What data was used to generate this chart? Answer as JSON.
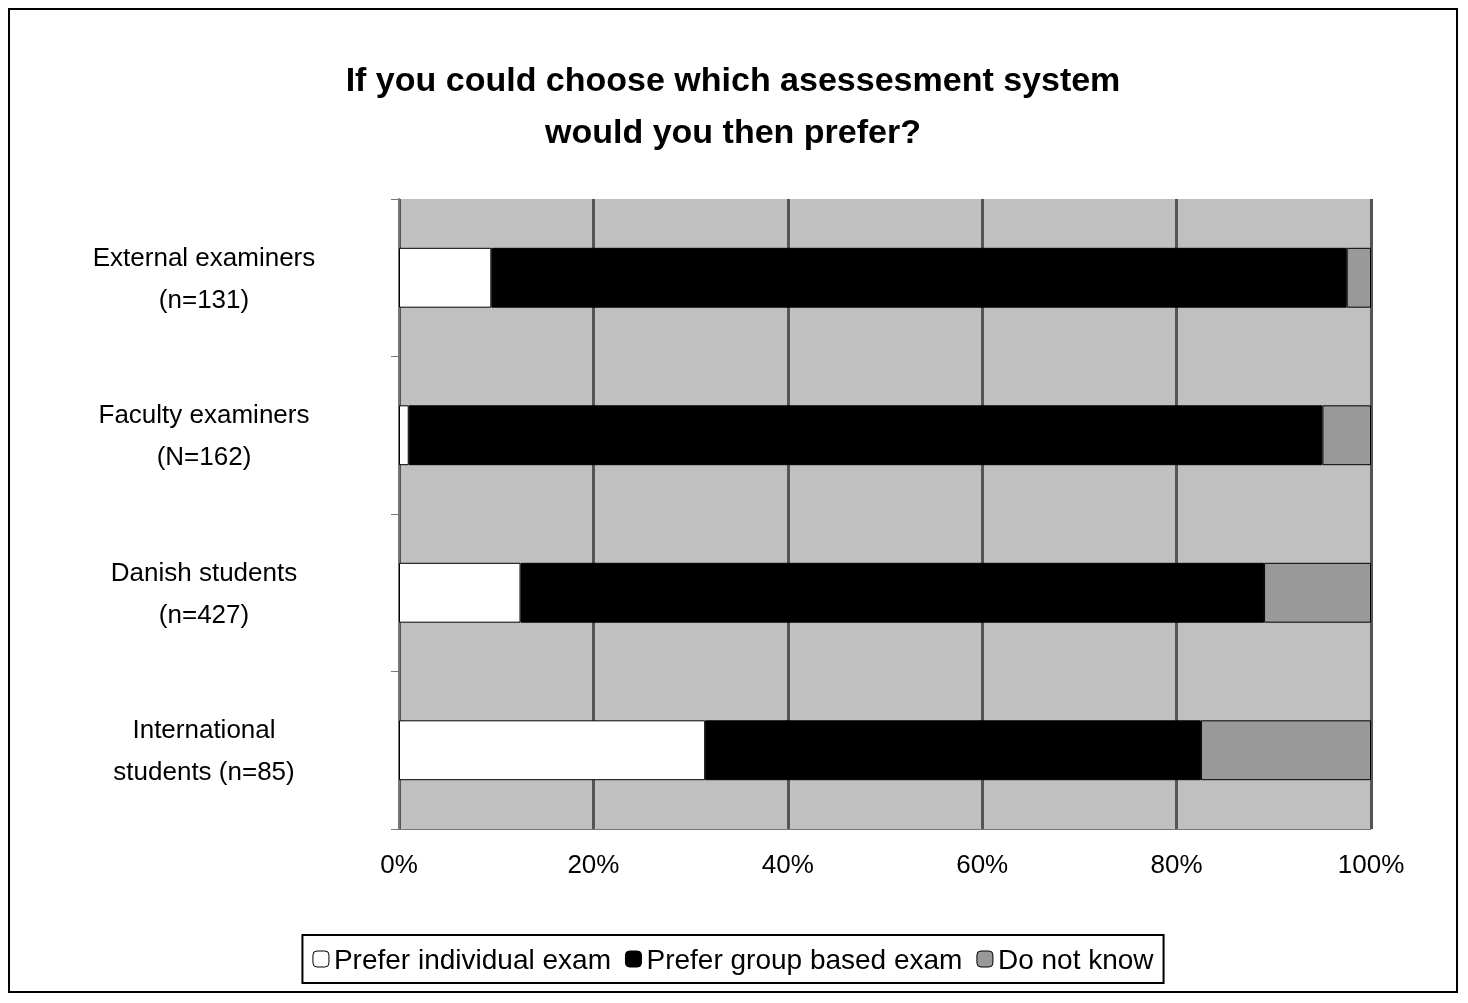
{
  "chart_data": {
    "type": "bar",
    "orientation": "horizontal",
    "stacked": true,
    "title": "If you could choose which asessesment system\nwould you then prefer?",
    "categories": [
      "External examiners\n(n=131)",
      "Faculty examiners\n(N=162)",
      "Danish students\n(n=427)",
      "International\nstudents (n=85)"
    ],
    "series": [
      {
        "name": "Prefer individual exam",
        "color": "#ffffff",
        "values": [
          9.5,
          1,
          12.5,
          31.5
        ]
      },
      {
        "name": "Prefer group based exam",
        "color": "#000000",
        "values": [
          88,
          94,
          76.5,
          51
        ]
      },
      {
        "name": "Do not know",
        "color": "#999999",
        "values": [
          2.5,
          5,
          11,
          17.5
        ]
      }
    ],
    "xlim": [
      0,
      100
    ],
    "xticks": [
      {
        "value": 0,
        "label": "0%"
      },
      {
        "value": 20,
        "label": "20%"
      },
      {
        "value": 40,
        "label": "40%"
      },
      {
        "value": 60,
        "label": "60%"
      },
      {
        "value": 80,
        "label": "80%"
      },
      {
        "value": 100,
        "label": "100%"
      }
    ],
    "grid": "x",
    "legend": "bottom"
  }
}
